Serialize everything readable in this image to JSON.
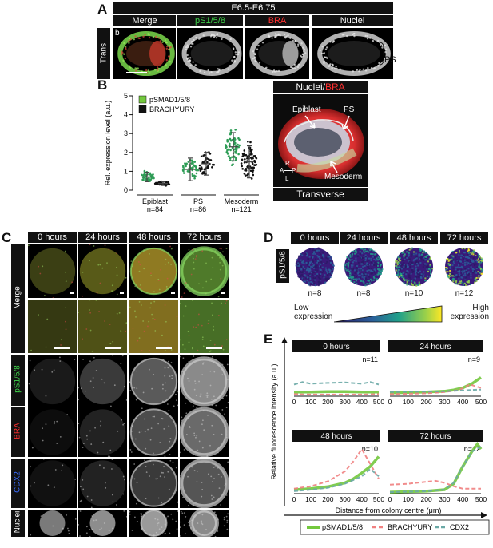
{
  "panelA": {
    "letter": "A",
    "stage": "E6.5-E6.75",
    "columns": [
      "Merge",
      "pS1/5/8",
      "BRA",
      "Nuclei"
    ],
    "column_colors": [
      "#ffffff",
      "#3fd44a",
      "#ff3030",
      "#ffffff"
    ],
    "row_label": "Trans",
    "inset_letter": "b",
    "ps_label": "PS"
  },
  "panelB": {
    "letter": "B",
    "legend": [
      "pSMAD1/5/8",
      "BRACHYURY"
    ],
    "ylabel": "Rel. expression level (a.u.)",
    "groups": [
      {
        "name": "Epiblast",
        "n": "n=84"
      },
      {
        "name": "PS",
        "n": "n=86"
      },
      {
        "name": "Mesoderm",
        "n": "n=121"
      }
    ],
    "image_title": "Nuclei/BRA",
    "image_title_parts": [
      "Nuclei/",
      "BRA"
    ],
    "image_labels": [
      "Epiblast",
      "PS",
      "Mesoderm"
    ],
    "axis_labels": [
      "R",
      "A",
      "P",
      "L"
    ],
    "image_footer": "Transverse"
  },
  "panelC": {
    "letter": "C",
    "times": [
      "0 hours",
      "24 hours",
      "48 hours",
      "72 hours"
    ],
    "rows": [
      "Merge",
      "pS1/5/8",
      "BRA",
      "CDX2",
      "Nuclei"
    ],
    "row_colors": [
      "#ffffff",
      "#3fd44a",
      "#ff3030",
      "#3a6cff",
      "#ffffff"
    ]
  },
  "panelD": {
    "letter": "D",
    "times": [
      "0 hours",
      "24 hours",
      "48 hours",
      "72 hours"
    ],
    "row_label": "pS1/5/8",
    "n": [
      "n=8",
      "n=8",
      "n=10",
      "n=12"
    ],
    "scale_low": "Low expression",
    "scale_high": "High expression"
  },
  "panelE": {
    "letter": "E",
    "ylabel": "Relative fluorescence intensity (a.u.)",
    "xlabel": "Distance from colony centre (μm)",
    "legend": [
      "pSMAD1/5/8",
      "BRACHYURY",
      "CDX2"
    ]
  },
  "colors": {
    "green": "#73c83d",
    "red": "#f08080",
    "teal": "#6aa9a6"
  },
  "chart_data": [
    {
      "type": "scatter",
      "title": "",
      "xlabel": "",
      "ylabel": "Rel. expression level (a.u.)",
      "ylim": [
        0,
        5
      ],
      "yticks": [
        0,
        1,
        2,
        3,
        4,
        5
      ],
      "categories": [
        "Epiblast",
        "PS",
        "Mesoderm"
      ],
      "series": [
        {
          "name": "pSMAD1/5/8",
          "mean": [
            0.7,
            1.1,
            2.3
          ],
          "sd": [
            0.25,
            0.6,
            0.75
          ],
          "max": [
            1.5,
            2.7,
            4.6
          ]
        },
        {
          "name": "BRACHYURY",
          "mean": [
            0.35,
            1.4,
            1.5
          ],
          "sd": [
            0.1,
            0.6,
            0.85
          ],
          "max": [
            0.6,
            3.1,
            3.9
          ]
        }
      ]
    },
    {
      "type": "line",
      "title": "0 hours",
      "n": "n=11",
      "xlim": [
        0,
        500
      ],
      "ylim": [
        0,
        100
      ],
      "xticks": [
        0,
        100,
        200,
        300,
        400,
        500
      ],
      "series": [
        {
          "name": "pSMAD1/5/8",
          "x": [
            0,
            100,
            200,
            300,
            400,
            500
          ],
          "y": [
            10,
            10,
            11,
            11,
            10,
            10
          ]
        },
        {
          "name": "BRACHYURY",
          "x": [
            0,
            100,
            200,
            300,
            400,
            500
          ],
          "y": [
            5,
            4,
            4,
            4,
            4,
            5
          ]
        },
        {
          "name": "CDX2",
          "x": [
            0,
            50,
            100,
            200,
            300,
            400,
            450,
            500
          ],
          "y": [
            28,
            34,
            30,
            32,
            33,
            30,
            34,
            28
          ]
        }
      ]
    },
    {
      "type": "line",
      "title": "24 hours",
      "n": "n=9",
      "xlim": [
        0,
        500
      ],
      "ylim": [
        0,
        100
      ],
      "xticks": [
        0,
        100,
        200,
        300,
        400,
        500
      ],
      "series": [
        {
          "name": "pSMAD1/5/8",
          "x": [
            0,
            100,
            200,
            300,
            350,
            400,
            450,
            500
          ],
          "y": [
            8,
            9,
            10,
            12,
            15,
            20,
            30,
            45
          ]
        },
        {
          "name": "BRACHYURY",
          "x": [
            0,
            100,
            200,
            300,
            380,
            440,
            500
          ],
          "y": [
            5,
            6,
            7,
            10,
            15,
            28,
            20
          ]
        },
        {
          "name": "CDX2",
          "x": [
            0,
            100,
            200,
            300,
            400,
            500
          ],
          "y": [
            10,
            11,
            11,
            12,
            14,
            16
          ]
        }
      ]
    },
    {
      "type": "line",
      "title": "48 hours",
      "n": "n=10",
      "xlim": [
        0,
        500
      ],
      "ylim": [
        0,
        100
      ],
      "xticks": [
        0,
        100,
        200,
        300,
        400,
        500
      ],
      "series": [
        {
          "name": "pSMAD1/5/8",
          "x": [
            0,
            100,
            200,
            300,
            350,
            400,
            450,
            500
          ],
          "y": [
            8,
            10,
            14,
            22,
            30,
            42,
            55,
            75
          ]
        },
        {
          "name": "BRACHYURY",
          "x": [
            0,
            100,
            200,
            300,
            350,
            400,
            450,
            500
          ],
          "y": [
            10,
            15,
            25,
            45,
            65,
            90,
            60,
            30
          ]
        },
        {
          "name": "CDX2",
          "x": [
            0,
            100,
            200,
            300,
            400,
            450,
            500
          ],
          "y": [
            5,
            8,
            12,
            20,
            35,
            50,
            35
          ]
        }
      ]
    },
    {
      "type": "line",
      "title": "72 hours",
      "n": "n=12",
      "xlim": [
        0,
        500
      ],
      "ylim": [
        0,
        100
      ],
      "xticks": [
        0,
        100,
        200,
        300,
        400,
        500
      ],
      "series": [
        {
          "name": "pSMAD1/5/8",
          "x": [
            0,
            100,
            200,
            300,
            350,
            400,
            450,
            480,
            500
          ],
          "y": [
            3,
            4,
            5,
            8,
            20,
            55,
            85,
            100,
            90
          ]
        },
        {
          "name": "BRACHYURY",
          "x": [
            0,
            100,
            200,
            250,
            300,
            350,
            400,
            500
          ],
          "y": [
            18,
            20,
            24,
            26,
            22,
            15,
            10,
            10
          ]
        },
        {
          "name": "CDX2",
          "x": [
            0,
            100,
            200,
            300,
            350,
            400,
            450,
            500
          ],
          "y": [
            3,
            4,
            5,
            8,
            22,
            55,
            85,
            95
          ]
        }
      ]
    }
  ]
}
